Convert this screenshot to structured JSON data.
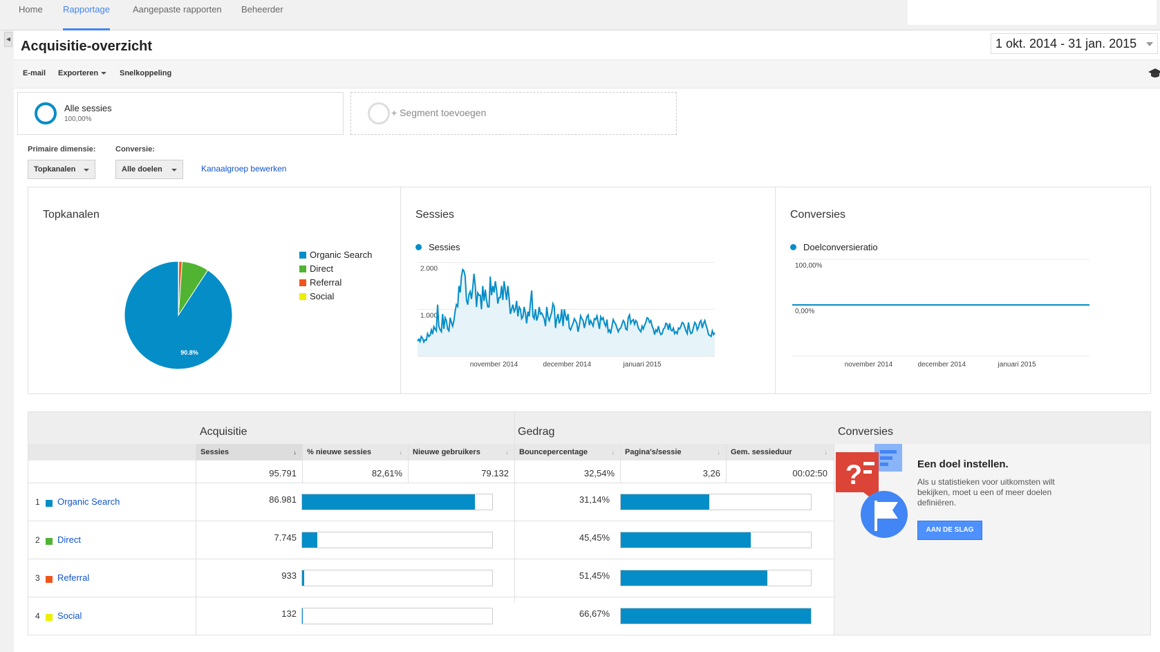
{
  "nav": {
    "tabs": [
      {
        "label": "Home"
      },
      {
        "label": "Rapportage"
      },
      {
        "label": "Aangepaste rapporten"
      },
      {
        "label": "Beheerder"
      }
    ],
    "active_tab": "Rapportage"
  },
  "page": {
    "title": "Acquisitie-overzicht",
    "date_range": "1 okt. 2014 - 31 jan. 2015"
  },
  "toolbar": {
    "email": "E-mail",
    "export": "Exporteren",
    "shortcut": "Snelkoppeling",
    "icon": "graduation-cap-icon"
  },
  "segments": {
    "active": {
      "name": "Alle sessies",
      "pct": "100,00%"
    },
    "add": "+ Segment toevoegen"
  },
  "filters": {
    "primary_label": "Primaire dimensie:",
    "primary_value": "Topkanalen",
    "conversion_label": "Conversie:",
    "conversion_value": "Alle doelen",
    "edit_link": "Kanaalgroep bewerken"
  },
  "colors": {
    "organic": "#058dc7",
    "direct": "#50b432",
    "referral": "#ed561b",
    "social": "#edef00",
    "accent": "#4285f4"
  },
  "charts": [
    {
      "type": "pie",
      "title": "Topkanalen",
      "slices": [
        {
          "label": "Organic Search",
          "value": 86981,
          "color": "#058dc7"
        },
        {
          "label": "Direct",
          "value": 7745,
          "color": "#50b432"
        },
        {
          "label": "Referral",
          "value": 933,
          "color": "#ed561b"
        },
        {
          "label": "Social",
          "value": 132,
          "color": "#edef00"
        }
      ],
      "slice_label": "90.8%"
    },
    {
      "type": "area",
      "title": "Sessies",
      "series_name": "Sessies",
      "yticks": [
        "2.000",
        "1.000"
      ],
      "ylim": [
        0,
        2000
      ],
      "xticks": [
        "november 2014",
        "december 2014",
        "januari 2015"
      ],
      "values": [
        320,
        360,
        310,
        420,
        380,
        300,
        350,
        340,
        480,
        420,
        440,
        560,
        470,
        630,
        580,
        540,
        1100,
        640,
        560,
        520,
        900,
        580,
        820,
        760,
        580,
        540,
        820,
        720,
        640,
        760,
        960,
        1100,
        1060,
        1500,
        1360,
        1700,
        1850,
        1820,
        1700,
        1200,
        1100,
        1320,
        1380,
        1220,
        1450,
        1760,
        1500,
        1050,
        1350,
        1300,
        1300,
        1000,
        1500,
        1180,
        1420,
        1200,
        1050,
        1050,
        1700,
        1300,
        1500,
        1360,
        1600,
        1420,
        1120,
        1250,
        1250,
        1500,
        1200,
        1600,
        1400,
        1200,
        1500,
        1250,
        900,
        1000,
        1100,
        950,
        1000,
        1180,
        850,
        1050,
        1000,
        800,
        840,
        1050,
        920,
        700,
        950,
        850,
        1140,
        1400,
        850,
        800,
        1000,
        760,
        850,
        1050,
        900,
        920,
        860,
        800,
        640,
        1050,
        840,
        760,
        850,
        940,
        1120,
        1050,
        600,
        800,
        900,
        700,
        780,
        1000,
        640,
        1000,
        860,
        760,
        900,
        600,
        560,
        640,
        700,
        800,
        750,
        700,
        520,
        660,
        860,
        800,
        760,
        600,
        720,
        840,
        880,
        660,
        760,
        700,
        640,
        800,
        780,
        860,
        720,
        580,
        840,
        780,
        820,
        700,
        640,
        780,
        520,
        560,
        480,
        640,
        780,
        720,
        680,
        600,
        520,
        580,
        600,
        680,
        760,
        720,
        580,
        560,
        820,
        880,
        700,
        760,
        780,
        680,
        760,
        720,
        600,
        560,
        520,
        640,
        580,
        660,
        720,
        820,
        800,
        720,
        760,
        640,
        580,
        460,
        560,
        520,
        640,
        520,
        460,
        480,
        580,
        600,
        700,
        680,
        560,
        700,
        560,
        540,
        600,
        480,
        520,
        480,
        600,
        580,
        640,
        720,
        700,
        620,
        540,
        480,
        720,
        560,
        480,
        500,
        620,
        720,
        680,
        560,
        620,
        720,
        760,
        600,
        700,
        760,
        660,
        580,
        460,
        440,
        420,
        540,
        460,
        500
      ]
    },
    {
      "type": "line",
      "title": "Conversies",
      "series_name": "Doelconversieratio",
      "yticks": [
        "100,00%",
        "0,00%"
      ],
      "ylim": [
        0,
        100
      ],
      "xticks": [
        "november 2014",
        "december 2014",
        "januari 2015"
      ],
      "value": 0
    }
  ],
  "table": {
    "groups": [
      "Acquisitie",
      "Gedrag",
      "Conversies"
    ],
    "columns": [
      "Sessies",
      "% nieuwe sessies",
      "Nieuwe gebruikers",
      "Bouncepercentage",
      "Pagina's/sessie",
      "Gem. sessieduur"
    ],
    "totals": [
      "95.791",
      "82,61%",
      "79.132",
      "32,54%",
      "3,26",
      "00:02:50"
    ],
    "rows": [
      {
        "num": "1",
        "name": "Organic Search",
        "color": "#058dc7",
        "sessions": "86.981",
        "sessions_frac": 0.9081,
        "bounce": "31,14%",
        "bounce_frac": 0.467
      },
      {
        "num": "2",
        "name": "Direct",
        "color": "#50b432",
        "sessions": "7.745",
        "sessions_frac": 0.0809,
        "bounce": "45,45%",
        "bounce_frac": 0.682
      },
      {
        "num": "3",
        "name": "Referral",
        "color": "#ed561b",
        "sessions": "933",
        "sessions_frac": 0.0097,
        "bounce": "51,45%",
        "bounce_frac": 0.772
      },
      {
        "num": "4",
        "name": "Social",
        "color": "#edef00",
        "sessions": "132",
        "sessions_frac": 0.0014,
        "bounce": "66,67%",
        "bounce_frac": 1.0
      }
    ]
  },
  "goal": {
    "title": "Een doel instellen.",
    "text": "Als u statistieken voor uitkomsten wilt bekijken, moet u een of meer doelen definiëren.",
    "button": "AAN DE SLAG"
  }
}
